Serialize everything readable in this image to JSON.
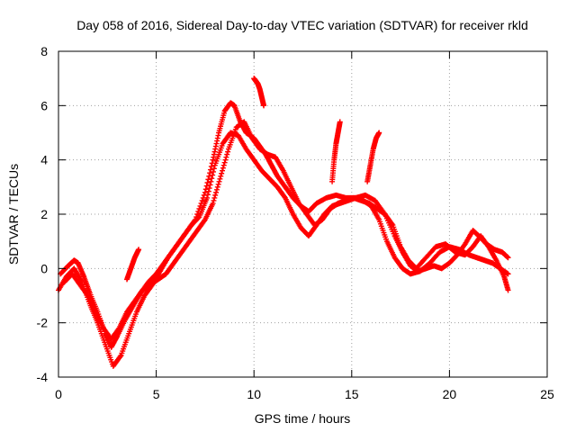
{
  "chart_data": {
    "type": "scatter",
    "title": "Day 058 of 2016, Sidereal Day-to-day VTEC variation (SDTVAR) for receiver rkld",
    "xlabel": "GPS time / hours",
    "ylabel": "SDTVAR / TECUs",
    "xlim": [
      0,
      25
    ],
    "ylim": [
      -4,
      8
    ],
    "x_ticks": [
      "0",
      "5",
      "10",
      "15",
      "20",
      "25"
    ],
    "y_ticks": [
      "-4",
      "-2",
      "0",
      "2",
      "4",
      "6",
      "8"
    ],
    "grid": true,
    "legend": "none",
    "marker": "plus",
    "color": "#ff0000",
    "series": [
      {
        "x": [
          0.1,
          0.5,
          0.8,
          1.0,
          1.3,
          1.6,
          2.0,
          2.4,
          2.7,
          3.0,
          3.4,
          3.8,
          4.2,
          4.6,
          5.0,
          5.4,
          5.8,
          6.2,
          6.6,
          7.0,
          7.5,
          7.9,
          8.2,
          8.5,
          8.8,
          9.0,
          9.3,
          9.6,
          10.0,
          10.3,
          10.6,
          10.9,
          11.2,
          11.6,
          12.0,
          12.4,
          12.8,
          13.2,
          13.7,
          14.2,
          14.7,
          15.2,
          15.7,
          16.2,
          16.7,
          17.2,
          17.6,
          18.0,
          18.4,
          18.8,
          19.2,
          19.6,
          20.0,
          20.4,
          20.8,
          21.2,
          21.5,
          21.9,
          22.3,
          22.7,
          23.0
        ],
        "y": [
          -0.2,
          0.1,
          0.3,
          0.2,
          -0.3,
          -0.9,
          -1.6,
          -2.4,
          -2.9,
          -2.5,
          -1.9,
          -1.4,
          -0.9,
          -0.5,
          -0.2,
          0.2,
          0.6,
          1.0,
          1.4,
          1.8,
          2.8,
          4.0,
          5.0,
          5.8,
          6.1,
          6.0,
          5.4,
          5.0,
          4.8,
          4.5,
          4.2,
          3.8,
          3.4,
          3.0,
          2.6,
          2.3,
          2.1,
          2.4,
          2.6,
          2.7,
          2.6,
          2.6,
          2.7,
          2.5,
          2.0,
          1.2,
          0.6,
          0.1,
          -0.1,
          0.0,
          0.1,
          0.0,
          0.2,
          0.5,
          0.9,
          1.4,
          1.2,
          0.9,
          0.7,
          0.6,
          0.4
        ]
      },
      {
        "x": [
          0.0,
          0.4,
          0.8,
          1.2,
          1.6,
          2.0,
          2.4,
          2.8,
          3.2,
          3.6,
          4.0,
          4.4,
          4.8,
          5.2,
          5.6,
          6.0,
          6.4,
          6.8,
          7.2,
          7.6,
          8.0,
          8.4,
          8.8,
          9.2,
          9.6,
          10.0,
          10.4,
          10.8,
          11.2,
          11.6,
          12.0,
          12.4,
          12.8,
          13.2,
          13.6,
          14.0,
          14.4,
          14.8,
          15.2,
          15.6,
          16.0,
          16.4,
          16.8,
          17.2,
          17.6,
          18.0,
          18.5,
          19.0,
          19.5,
          20.0,
          20.5,
          21.0,
          21.4,
          21.8,
          22.2,
          22.6,
          23.0
        ],
        "y": [
          -0.8,
          -0.3,
          0.0,
          -0.5,
          -1.3,
          -2.0,
          -2.8,
          -3.6,
          -3.2,
          -2.4,
          -1.6,
          -1.0,
          -0.6,
          -0.1,
          0.4,
          0.8,
          1.2,
          1.6,
          1.9,
          2.6,
          3.8,
          4.6,
          5.0,
          4.9,
          4.4,
          4.0,
          3.6,
          3.3,
          3.0,
          2.6,
          2.0,
          1.5,
          1.2,
          1.6,
          2.0,
          2.3,
          2.4,
          2.5,
          2.6,
          2.5,
          2.3,
          1.8,
          1.0,
          0.4,
          0.0,
          -0.2,
          -0.1,
          0.2,
          0.6,
          0.8,
          0.7,
          0.5,
          0.4,
          0.3,
          0.2,
          0.0,
          -0.2
        ]
      },
      {
        "x": [
          0.3,
          0.7,
          1.1,
          1.5,
          1.9,
          2.3,
          2.7,
          3.1,
          3.5,
          3.9,
          4.3,
          4.7,
          5.1,
          5.5,
          5.9,
          6.3,
          6.7,
          7.1,
          7.5,
          7.9,
          8.3,
          8.7,
          9.1,
          9.5,
          9.9,
          10.3,
          10.7,
          11.1,
          11.5,
          11.9,
          12.3,
          12.7,
          13.1,
          13.5,
          13.9,
          14.3,
          14.7,
          15.1,
          15.5,
          15.9,
          16.3,
          16.7,
          17.1,
          17.5,
          17.9,
          18.3,
          18.8,
          19.3,
          19.8,
          20.3,
          20.8,
          21.2,
          21.6,
          22.0,
          22.4,
          22.8,
          23.0
        ],
        "y": [
          -0.5,
          -0.2,
          -0.6,
          -1.0,
          -1.6,
          -2.2,
          -2.6,
          -2.2,
          -1.6,
          -1.2,
          -0.8,
          -0.6,
          -0.4,
          -0.2,
          0.2,
          0.6,
          1.0,
          1.4,
          1.8,
          2.4,
          3.4,
          4.4,
          5.2,
          5.4,
          4.8,
          4.4,
          4.2,
          4.1,
          3.6,
          3.0,
          2.4,
          2.0,
          1.6,
          1.8,
          2.2,
          2.4,
          2.5,
          2.6,
          2.5,
          2.4,
          2.2,
          2.0,
          1.6,
          0.8,
          0.3,
          0.0,
          0.4,
          0.8,
          0.9,
          0.6,
          0.5,
          0.8,
          1.2,
          0.8,
          0.3,
          -0.3,
          -0.8
        ]
      },
      {
        "x": [
          14.0,
          14.1,
          14.2,
          14.3,
          14.4
        ],
        "y": [
          3.2,
          4.0,
          4.6,
          5.0,
          5.4
        ]
      },
      {
        "x": [
          15.8,
          15.95,
          16.1,
          16.25,
          16.4
        ],
        "y": [
          3.2,
          3.8,
          4.4,
          4.8,
          5.0
        ]
      },
      {
        "x": [
          10.0,
          10.1,
          10.2,
          10.3,
          10.4,
          10.5
        ],
        "y": [
          7.0,
          6.9,
          6.8,
          6.6,
          6.3,
          6.0
        ]
      },
      {
        "x": [
          3.5,
          3.7,
          3.9,
          4.1
        ],
        "y": [
          -0.4,
          0.0,
          0.4,
          0.7
        ]
      }
    ]
  }
}
